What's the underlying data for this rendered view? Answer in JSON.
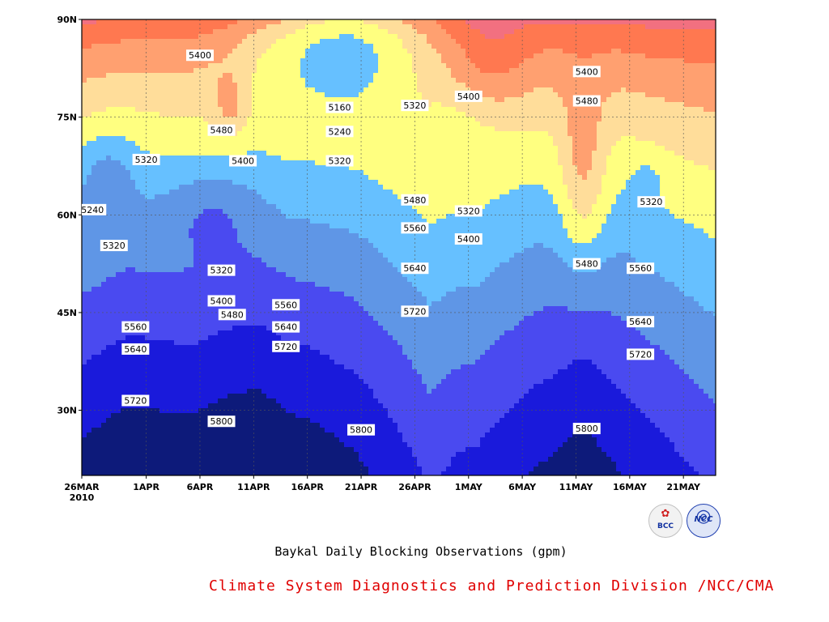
{
  "chart_data": {
    "type": "heatmap",
    "subtype": "filled-contour",
    "title": "Baykal Daily Blocking Observations (gpm)",
    "x_tick_labels": [
      "26MAR",
      "1APR",
      "6APR",
      "11APR",
      "16APR",
      "21APR",
      "26APR",
      "1MAY",
      "6MAY",
      "11MAY",
      "16MAY",
      "21MAY"
    ],
    "x_year_label": "2010",
    "x_range": [
      "2010-03-26",
      "2010-05-24"
    ],
    "y_tick_labels": [
      "30N",
      "45N",
      "60N",
      "75N",
      "90N"
    ],
    "y_range_deg": [
      20,
      90
    ],
    "grid": "dotted",
    "contour_interval_gpm": 80,
    "levels": [
      5160,
      5240,
      5320,
      5400,
      5480,
      5560,
      5640,
      5720,
      5800,
      5880
    ],
    "level_colors": [
      "#0d1a7a",
      "#1a1adb",
      "#4a4af0",
      "#5f96e6",
      "#66c0ff",
      "#ffff80",
      "#ffdd9a",
      "#ffa070",
      "#ff7850",
      "#f27080",
      "#e63050"
    ],
    "contour_labels": [
      {
        "value": "5400",
        "date": "2010-04-06",
        "lat": 84.5
      },
      {
        "value": "5160",
        "date": "2010-04-19",
        "lat": 76.5
      },
      {
        "value": "5320",
        "date": "2010-04-26",
        "lat": 76.8
      },
      {
        "value": "5400",
        "date": "2010-05-01",
        "lat": 78.2
      },
      {
        "value": "5400",
        "date": "2010-05-12",
        "lat": 82.0
      },
      {
        "value": "5480",
        "date": "2010-04-08",
        "lat": 73.0
      },
      {
        "value": "5240",
        "date": "2010-04-19",
        "lat": 72.8
      },
      {
        "value": "5480",
        "date": "2010-05-12",
        "lat": 77.5
      },
      {
        "value": "5320",
        "date": "2010-04-01",
        "lat": 68.5
      },
      {
        "value": "5400",
        "date": "2010-04-10",
        "lat": 68.3
      },
      {
        "value": "5320",
        "date": "2010-04-19",
        "lat": 68.3
      },
      {
        "value": "5240",
        "date": "2010-03-27",
        "lat": 60.8
      },
      {
        "value": "5480",
        "date": "2010-04-26",
        "lat": 62.3
      },
      {
        "value": "5320",
        "date": "2010-05-01",
        "lat": 60.6
      },
      {
        "value": "5320",
        "date": "2010-05-18",
        "lat": 62.0
      },
      {
        "value": "5560",
        "date": "2010-04-26",
        "lat": 58.0
      },
      {
        "value": "5320",
        "date": "2010-03-29",
        "lat": 55.3
      },
      {
        "value": "5400",
        "date": "2010-05-01",
        "lat": 56.3
      },
      {
        "value": "5480",
        "date": "2010-05-12",
        "lat": 52.5
      },
      {
        "value": "5320",
        "date": "2010-04-08",
        "lat": 51.5
      },
      {
        "value": "5640",
        "date": "2010-04-26",
        "lat": 51.8
      },
      {
        "value": "5560",
        "date": "2010-05-17",
        "lat": 51.8
      },
      {
        "value": "5400",
        "date": "2010-04-08",
        "lat": 46.8
      },
      {
        "value": "5560",
        "date": "2010-04-14",
        "lat": 46.2
      },
      {
        "value": "5720",
        "date": "2010-04-26",
        "lat": 45.2
      },
      {
        "value": "5480",
        "date": "2010-04-09",
        "lat": 44.7
      },
      {
        "value": "5560",
        "date": "2010-03-31",
        "lat": 42.8
      },
      {
        "value": "5640",
        "date": "2010-04-14",
        "lat": 42.8
      },
      {
        "value": "5640",
        "date": "2010-05-17",
        "lat": 43.6
      },
      {
        "value": "5640",
        "date": "2010-03-31",
        "lat": 39.4
      },
      {
        "value": "5720",
        "date": "2010-04-14",
        "lat": 39.8
      },
      {
        "value": "5720",
        "date": "2010-05-17",
        "lat": 38.6
      },
      {
        "value": "5720",
        "date": "2010-03-31",
        "lat": 31.5
      },
      {
        "value": "5800",
        "date": "2010-04-08",
        "lat": 28.3
      },
      {
        "value": "5800",
        "date": "2010-04-21",
        "lat": 27.0
      },
      {
        "value": "5800",
        "date": "2010-05-12",
        "lat": 27.2
      }
    ]
  },
  "footer": {
    "caption": "Baykal Daily Blocking Observations (gpm)",
    "organization": "Climate System Diagnostics and Prediction Division /NCC/CMA",
    "logo_bcc_text": "BCC",
    "logo_ncc_text": "NCC"
  }
}
